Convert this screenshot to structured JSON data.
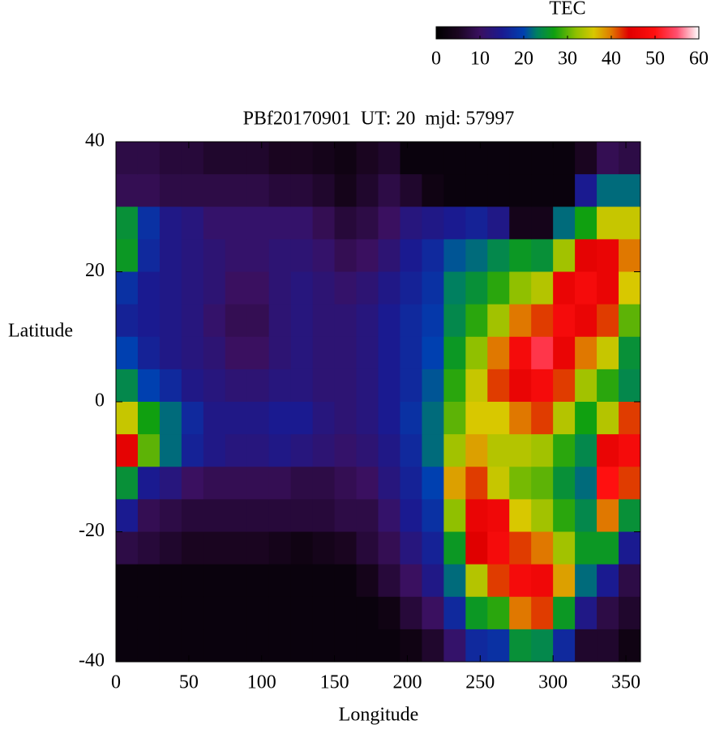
{
  "chart_data": {
    "type": "heatmap",
    "title": "PBf20170901  UT: 20  mjd: 57997",
    "x_label": "Longitude",
    "y_label": "Latitude",
    "xlim": [
      0,
      360
    ],
    "ylim": [
      -40,
      40
    ],
    "xticks": [
      0,
      50,
      100,
      150,
      200,
      250,
      300,
      350
    ],
    "yticks": [
      40,
      20,
      0,
      -20,
      -40
    ],
    "cell_width": 15,
    "cell_height": 5,
    "x": [
      7.5,
      22.5,
      37.5,
      52.5,
      67.5,
      82.5,
      97.5,
      112.5,
      127.5,
      142.5,
      157.5,
      172.5,
      187.5,
      202.5,
      217.5,
      232.5,
      247.5,
      262.5,
      277.5,
      292.5,
      307.5,
      322.5,
      337.5,
      352.5
    ],
    "y": [
      37.5,
      32.5,
      27.5,
      22.5,
      17.5,
      12.5,
      7.5,
      2.5,
      -2.5,
      -7.5,
      -12.5,
      -17.5,
      -22.5,
      -27.5,
      -32.5,
      -37.5
    ],
    "values": [
      [
        8,
        9,
        25,
        26,
        18,
        16,
        20,
        24,
        35,
        45,
        25,
        15,
        8,
        2,
        2,
        2
      ],
      [
        8,
        9,
        18,
        17,
        15,
        15,
        16,
        20,
        27,
        30,
        15,
        9,
        7,
        2,
        2,
        2
      ],
      [
        7,
        8,
        14,
        14,
        14,
        14,
        14,
        17,
        22,
        22,
        13,
        8,
        6,
        2,
        2,
        2
      ],
      [
        7,
        8,
        13,
        13,
        13,
        13,
        13,
        14,
        17,
        16,
        10,
        7,
        5,
        2,
        2,
        2
      ],
      [
        6,
        8,
        11,
        12,
        12,
        11,
        12,
        13,
        14,
        14,
        9,
        7,
        5,
        2,
        2,
        2
      ],
      [
        6,
        8,
        11,
        11,
        10,
        9,
        10,
        12,
        14,
        13,
        9,
        7,
        5,
        2,
        2,
        2
      ],
      [
        6,
        8,
        11,
        11,
        10,
        9,
        10,
        12,
        14,
        13,
        9,
        7,
        5,
        2,
        2,
        2
      ],
      [
        5,
        7,
        11,
        12,
        12,
        12,
        12,
        13,
        15,
        14,
        9,
        7,
        4,
        2,
        2,
        2
      ],
      [
        5,
        7,
        11,
        12,
        13,
        13,
        13,
        13,
        15,
        13,
        8,
        7,
        3,
        2,
        2,
        2
      ],
      [
        4,
        6,
        9,
        11,
        12,
        12,
        12,
        12,
        13,
        12,
        8,
        7,
        4,
        2,
        2,
        2
      ],
      [
        3,
        4,
        7,
        9,
        11,
        12,
        12,
        12,
        12,
        11,
        9,
        8,
        5,
        2,
        2,
        2
      ],
      [
        5,
        6,
        8,
        10,
        12,
        13,
        13,
        13,
        13,
        12,
        10,
        8,
        7,
        4,
        2,
        2
      ],
      [
        6,
        8,
        10,
        12,
        14,
        15,
        15,
        15,
        15,
        14,
        13,
        11,
        9,
        7,
        3,
        2
      ],
      [
        2,
        6,
        13,
        15,
        16,
        17,
        17,
        17,
        18,
        17,
        16,
        15,
        13,
        10,
        7,
        3
      ],
      [
        2,
        3,
        14,
        17,
        18,
        19,
        20,
        21,
        22,
        22,
        20,
        18,
        16,
        14,
        10,
        6
      ],
      [
        2,
        2,
        15,
        21,
        23,
        24,
        26,
        28,
        30,
        33,
        38,
        32,
        26,
        22,
        17,
        11
      ],
      [
        2,
        2,
        16,
        22,
        25,
        28,
        32,
        35,
        36,
        38,
        42,
        46,
        44,
        34,
        26,
        17
      ],
      [
        2,
        2,
        14,
        24,
        28,
        33,
        40,
        42,
        36,
        34,
        35,
        47,
        48,
        42,
        28,
        18
      ],
      [
        2,
        2,
        4,
        26,
        32,
        40,
        48,
        46,
        40,
        34,
        31,
        36,
        42,
        48,
        40,
        25
      ],
      [
        2,
        2,
        4,
        25,
        34,
        42,
        53,
        48,
        42,
        33,
        30,
        33,
        40,
        47,
        42,
        24
      ],
      [
        2,
        2,
        22,
        33,
        46,
        48,
        46,
        42,
        34,
        28,
        25,
        28,
        33,
        38,
        26,
        17
      ],
      [
        5,
        15,
        27,
        45,
        48,
        46,
        40,
        33,
        27,
        24,
        22,
        24,
        26,
        22,
        14,
        6
      ],
      [
        9,
        22,
        35,
        46,
        46,
        42,
        35,
        28,
        34,
        46,
        50,
        40,
        26,
        15,
        8,
        6
      ],
      [
        8,
        22,
        35,
        40,
        36,
        30,
        25,
        24,
        42,
        48,
        42,
        25,
        15,
        8,
        6,
        3
      ]
    ],
    "colorbar": {
      "label": "TEC",
      "lim": [
        0,
        60
      ],
      "ticks": [
        0,
        10,
        20,
        30,
        40,
        50,
        60
      ]
    },
    "colorscale": [
      [
        0,
        "#000000"
      ],
      [
        5,
        "#1a0520"
      ],
      [
        10,
        "#3a1060"
      ],
      [
        15,
        "#1a1a90"
      ],
      [
        20,
        "#0040b0"
      ],
      [
        23,
        "#008060"
      ],
      [
        27,
        "#10a010"
      ],
      [
        32,
        "#90c000"
      ],
      [
        36,
        "#d8c800"
      ],
      [
        40,
        "#e07800"
      ],
      [
        44,
        "#e00000"
      ],
      [
        50,
        "#ff1010"
      ],
      [
        55,
        "#ff5070"
      ],
      [
        60,
        "#ffffff"
      ]
    ]
  }
}
